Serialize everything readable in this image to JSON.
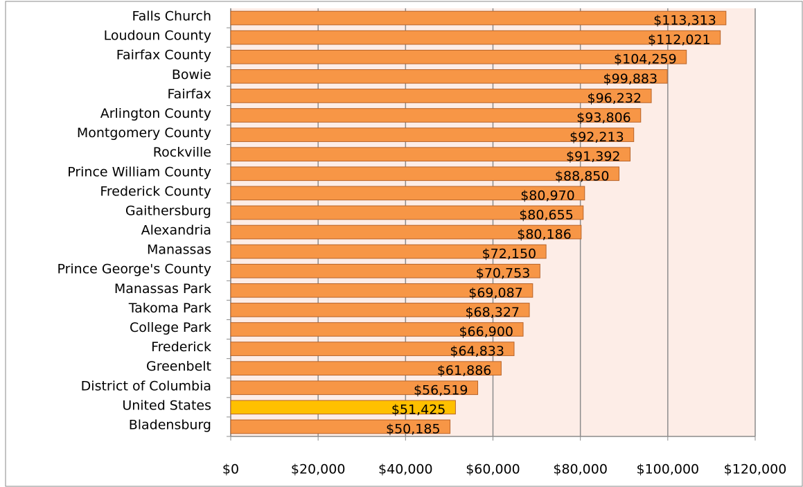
{
  "chart_data": {
    "type": "bar",
    "orientation": "horizontal",
    "categories": [
      "Falls Church",
      "Loudoun County",
      "Fairfax County",
      "Bowie",
      "Fairfax",
      "Arlington County",
      "Montgomery County",
      "Rockville",
      "Prince William County",
      "Frederick County",
      "Gaithersburg",
      "Alexandria",
      "Manassas",
      "Prince George's County",
      "Manassas Park",
      "Takoma Park",
      "College Park",
      "Frederick",
      "Greenbelt",
      "District of Columbia",
      "United States",
      "Bladensburg"
    ],
    "values": [
      113313,
      112021,
      104259,
      99883,
      96232,
      93806,
      92213,
      91392,
      88850,
      80970,
      80655,
      80186,
      72150,
      70753,
      69087,
      68327,
      66900,
      64833,
      61886,
      56519,
      51425,
      50185
    ],
    "value_labels": [
      "$113,313",
      "$112,021",
      "$104,259",
      "$99,883",
      "$96,232",
      "$93,806",
      "$92,213",
      "$91,392",
      "$88,850",
      "$80,970",
      "$80,655",
      "$80,186",
      "$72,150",
      "$70,753",
      "$69,087",
      "$68,327",
      "$66,900",
      "$64,833",
      "$61,886",
      "$56,519",
      "$51,425",
      "$50,185"
    ],
    "colors": [
      "#f79646",
      "#f79646",
      "#f79646",
      "#f79646",
      "#f79646",
      "#f79646",
      "#f79646",
      "#f79646",
      "#f79646",
      "#f79646",
      "#f79646",
      "#f79646",
      "#f79646",
      "#f79646",
      "#f79646",
      "#f79646",
      "#f79646",
      "#f79646",
      "#f79646",
      "#f79646",
      "#ffc000",
      "#f79646"
    ],
    "xlim": [
      0,
      120000
    ],
    "xticks": [
      {
        "value": 0,
        "label": "$0"
      },
      {
        "value": 20000,
        "label": "$20,000"
      },
      {
        "value": 40000,
        "label": "$40,000"
      },
      {
        "value": 60000,
        "label": "$60,000"
      },
      {
        "value": 80000,
        "label": "$80,000"
      },
      {
        "value": 100000,
        "label": "$100,000"
      },
      {
        "value": 120000,
        "label": "$120,000"
      }
    ],
    "grid": true
  }
}
